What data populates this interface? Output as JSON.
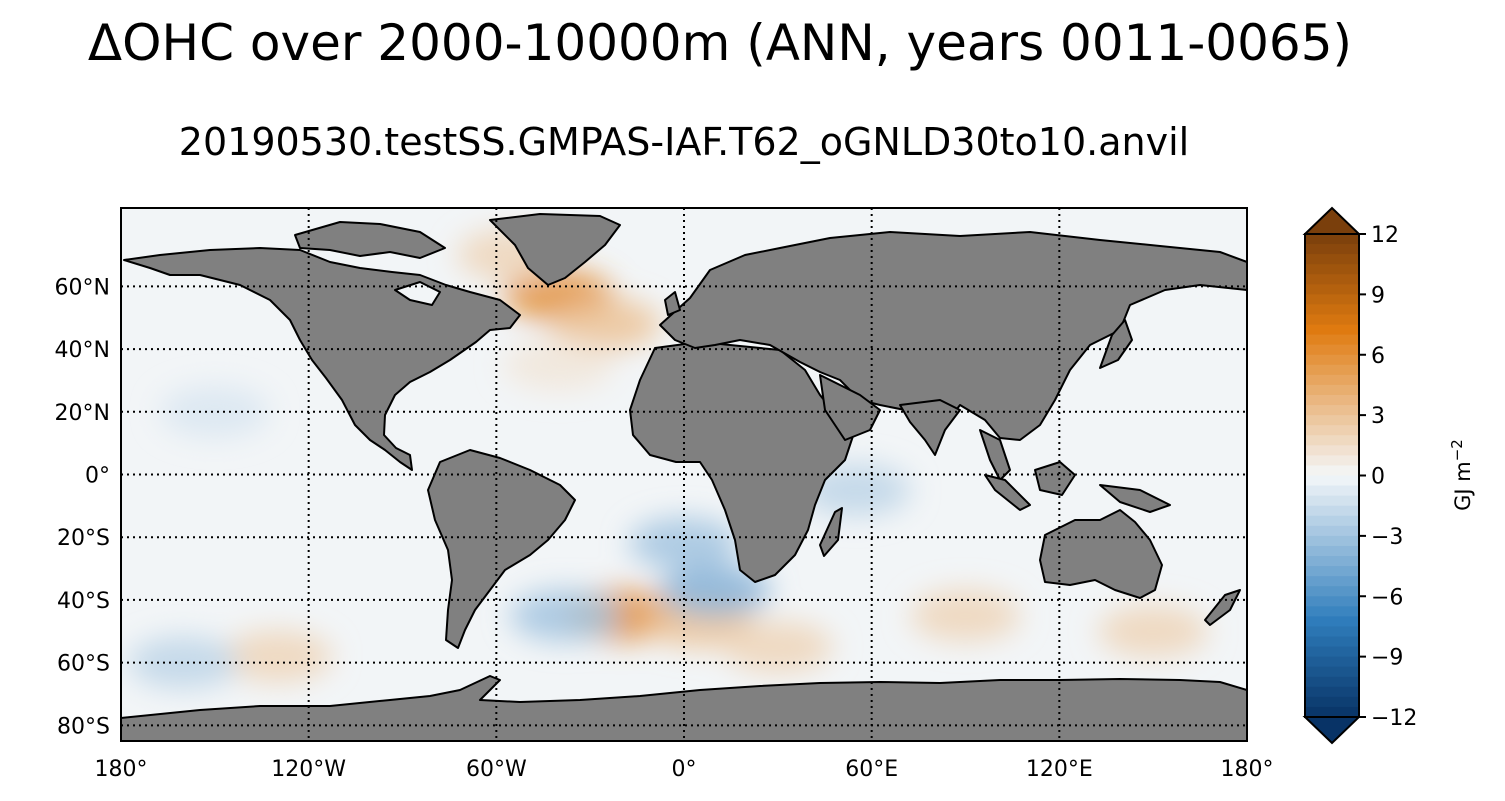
{
  "title": "ΔOHC over 2000-10000m (ANN, years 0011-0065)",
  "subtitle": "20190530.testSS.GMPAS-IAF.T62_oGNLD30to10.anvil",
  "map": {
    "projection": "plate-carree",
    "lon_range": [
      -180,
      180
    ],
    "lat_range": [
      -85,
      85
    ],
    "land_color": "#808080",
    "ocean_color": "#f2f5f7",
    "gridlines": "dotted",
    "lat_ticks": [
      {
        "value": 60,
        "label": "60°N"
      },
      {
        "value": 40,
        "label": "40°N"
      },
      {
        "value": 20,
        "label": "20°N"
      },
      {
        "value": 0,
        "label": "0°"
      },
      {
        "value": -20,
        "label": "20°S"
      },
      {
        "value": -40,
        "label": "40°S"
      },
      {
        "value": -60,
        "label": "60°S"
      },
      {
        "value": -80,
        "label": "80°S"
      }
    ],
    "lon_ticks": [
      {
        "value": -180,
        "label": "180°"
      },
      {
        "value": -120,
        "label": "120°W"
      },
      {
        "value": -60,
        "label": "60°W"
      },
      {
        "value": 0,
        "label": "0°"
      },
      {
        "value": 60,
        "label": "60°E"
      },
      {
        "value": 120,
        "label": "120°E"
      },
      {
        "value": 180,
        "label": "180°"
      }
    ],
    "anomalies": [
      {
        "lon": -40,
        "lat": 57,
        "value": 6
      },
      {
        "lon": -25,
        "lat": 48,
        "value": 3
      },
      {
        "lon": -20,
        "lat": -45,
        "value": 6
      },
      {
        "lon": 5,
        "lat": -47,
        "value": 3
      },
      {
        "lon": 30,
        "lat": -55,
        "value": 2
      },
      {
        "lon": 90,
        "lat": -45,
        "value": 2
      },
      {
        "lon": 150,
        "lat": -50,
        "value": 2
      },
      {
        "lon": -130,
        "lat": -58,
        "value": 2
      },
      {
        "lon": 0,
        "lat": -22,
        "value": -3
      },
      {
        "lon": 10,
        "lat": -37,
        "value": -4
      },
      {
        "lon": -38,
        "lat": -45,
        "value": -3
      },
      {
        "lon": 55,
        "lat": -5,
        "value": -2
      },
      {
        "lon": -150,
        "lat": 20,
        "value": -1
      },
      {
        "lon": -160,
        "lat": -60,
        "value": -2
      },
      {
        "lon": -55,
        "lat": 70,
        "value": 2
      },
      {
        "lon": -40,
        "lat": 35,
        "value": 1
      }
    ]
  },
  "colorbar": {
    "label": "GJ m",
    "label_sup": "−2",
    "vmin": -12,
    "vmax": 12,
    "extend": "both",
    "tick_labels": [
      "12",
      "9",
      "6",
      "3",
      "0",
      "−3",
      "−6",
      "−9",
      "−12"
    ],
    "tick_values": [
      12,
      9,
      6,
      3,
      0,
      -3,
      -6,
      -9,
      -12
    ],
    "colors": {
      "min": "#083366",
      "mid": "#f4f7f9",
      "max": "#7a3f0c"
    }
  }
}
